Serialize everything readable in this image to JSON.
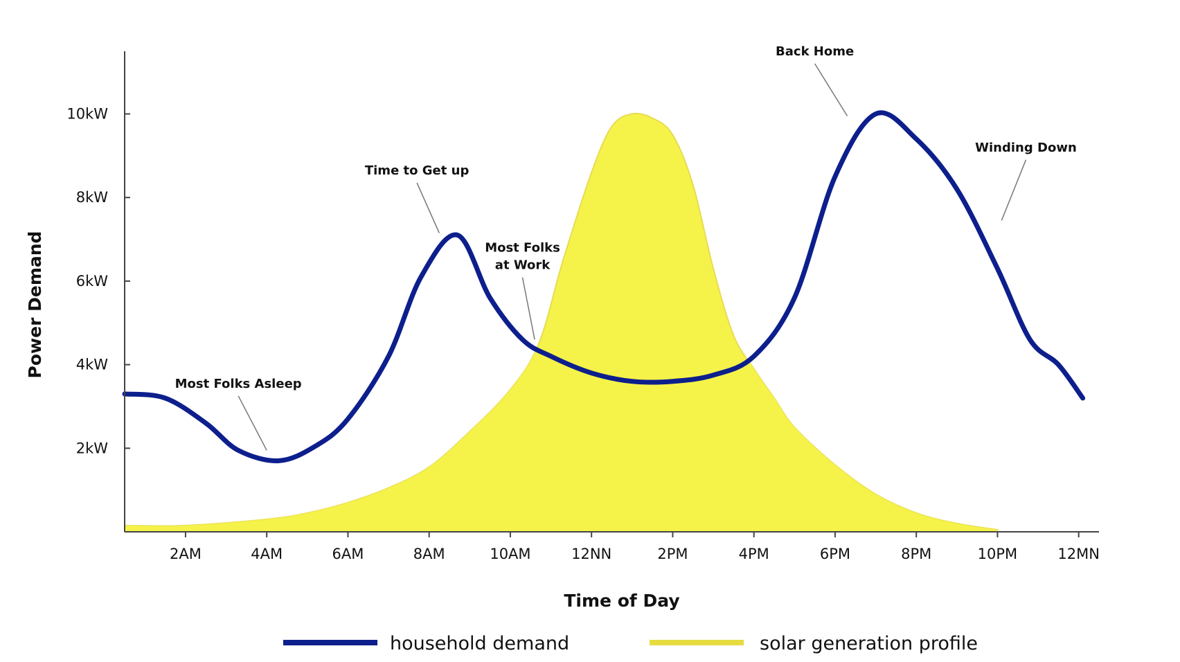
{
  "chart_data": {
    "type": "area",
    "title": "",
    "xlabel": "Time of Day",
    "ylabel": "Power Demand",
    "x_ticks": [
      {
        "hour": 2,
        "label": "2AM"
      },
      {
        "hour": 4,
        "label": "4AM"
      },
      {
        "hour": 6,
        "label": "6AM"
      },
      {
        "hour": 8,
        "label": "8AM"
      },
      {
        "hour": 10,
        "label": "10AM"
      },
      {
        "hour": 12,
        "label": "12NN"
      },
      {
        "hour": 14,
        "label": "2PM"
      },
      {
        "hour": 16,
        "label": "4PM"
      },
      {
        "hour": 18,
        "label": "6PM"
      },
      {
        "hour": 20,
        "label": "8PM"
      },
      {
        "hour": 22,
        "label": "10PM"
      },
      {
        "hour": 24,
        "label": "12MN"
      }
    ],
    "y_ticks": [
      {
        "value": 2,
        "label": "2kW"
      },
      {
        "value": 4,
        "label": "4kW"
      },
      {
        "value": 6,
        "label": "6kW"
      },
      {
        "value": 8,
        "label": "8kW"
      },
      {
        "value": 10,
        "label": "10kW"
      }
    ],
    "xlim": [
      0.5,
      24.5
    ],
    "ylim": [
      0,
      11.5
    ],
    "grid": false,
    "legend_position": "bottom",
    "series": [
      {
        "name": "household demand",
        "color": "#0d1f8c",
        "x": [
          0.5,
          1.5,
          2.5,
          3.3,
          4.3,
          5.2,
          6.0,
          7.0,
          7.8,
          8.7,
          9.5,
          10.3,
          11.0,
          12.0,
          13.0,
          14.0,
          15.0,
          16.0,
          17.0,
          18.0,
          19.0,
          20.0,
          21.0,
          22.0,
          22.8,
          23.5,
          24.1
        ],
        "y": [
          3.3,
          3.2,
          2.6,
          1.95,
          1.7,
          2.05,
          2.7,
          4.2,
          6.1,
          7.1,
          5.6,
          4.6,
          4.2,
          3.8,
          3.6,
          3.6,
          3.75,
          4.2,
          5.6,
          8.5,
          10.0,
          9.4,
          8.2,
          6.3,
          4.6,
          4.0,
          3.2
        ]
      },
      {
        "name": "solar generation profile",
        "color": "#f5f24a",
        "x": [
          0.5,
          2.0,
          4.0,
          5.0,
          6.0,
          7.0,
          8.0,
          9.0,
          10.0,
          10.7,
          11.3,
          12.0,
          12.5,
          13.0,
          13.5,
          14.0,
          14.5,
          15.0,
          15.5,
          16.0,
          16.5,
          17.0,
          18.0,
          19.0,
          20.0,
          21.0,
          22.0
        ],
        "y": [
          0.15,
          0.15,
          0.3,
          0.45,
          0.7,
          1.05,
          1.55,
          2.4,
          3.4,
          4.5,
          6.5,
          8.6,
          9.7,
          10.0,
          9.9,
          9.5,
          8.3,
          6.3,
          4.7,
          3.9,
          3.2,
          2.5,
          1.6,
          0.9,
          0.45,
          0.2,
          0.05
        ]
      }
    ],
    "overlap_fill_color": "#f9a070",
    "annotations": [
      {
        "lines": [
          "Most Folks Asleep"
        ],
        "text_hour": 3.3,
        "text_kw": 3.45,
        "point_hour": 4.0,
        "point_kw": 1.95
      },
      {
        "lines": [
          "Time to Get up"
        ],
        "text_hour": 7.7,
        "text_kw": 8.55,
        "point_hour": 8.25,
        "point_kw": 7.15
      },
      {
        "lines": [
          "Most Folks",
          "at Work"
        ],
        "text_hour": 10.3,
        "text_kw": 6.7,
        "point_hour": 10.6,
        "point_kw": 4.6
      },
      {
        "lines": [
          "Back Home"
        ],
        "text_hour": 17.5,
        "text_kw": 11.4,
        "point_hour": 18.3,
        "point_kw": 9.95
      },
      {
        "lines": [
          "Winding Down"
        ],
        "text_hour": 22.7,
        "text_kw": 9.1,
        "point_hour": 22.1,
        "point_kw": 7.45
      }
    ]
  }
}
